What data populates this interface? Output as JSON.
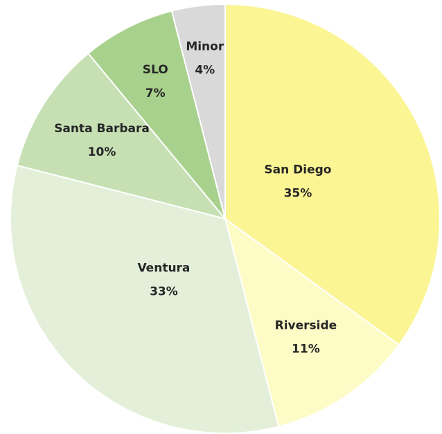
{
  "chart_data": {
    "type": "pie",
    "categories": [
      "San Diego",
      "Riverside",
      "Ventura",
      "Santa Barbara",
      "SLO",
      "Minor"
    ],
    "values": [
      35,
      11,
      33,
      10,
      7,
      4
    ],
    "value_labels": [
      "35%",
      "11%",
      "33%",
      "10%",
      "7%",
      "4%"
    ],
    "colors": [
      "#fbf594",
      "#fdfbc6",
      "#e3efd9",
      "#c6e0b4",
      "#a9d18e",
      "#d9d9d9"
    ]
  }
}
